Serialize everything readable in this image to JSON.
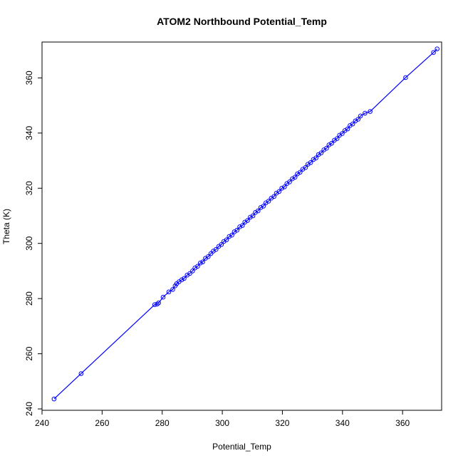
{
  "chart_data": {
    "type": "scatter",
    "title": "ATOM2 Northbound Potential_Temp",
    "xlabel": "Potential_Temp",
    "ylabel": "Theta (K)",
    "xlim": [
      240,
      373
    ],
    "ylim": [
      239.5,
      373
    ],
    "x_ticks": [
      240,
      260,
      280,
      300,
      320,
      340,
      360
    ],
    "y_ticks": [
      240,
      260,
      280,
      300,
      320,
      340,
      360
    ],
    "grid": false,
    "legend": "none",
    "series_color": "#0000ff",
    "point_style": "open-circle",
    "connected_line": true,
    "series": [
      {
        "x": [
          244.0,
          253.0,
          277.5,
          278.3,
          278.8,
          280.3,
          282.2,
          283.5,
          284.3,
          284.8,
          285.6,
          286.5,
          287.3,
          288.3,
          289.2,
          290.1,
          290.9,
          291.8,
          292.7,
          293.5,
          294.4,
          295.3,
          296.2,
          297.0,
          297.9,
          298.8,
          299.7,
          300.5,
          301.4,
          302.3,
          303.2,
          304.0,
          304.9,
          305.8,
          306.7,
          307.5,
          308.4,
          309.3,
          310.2,
          311.0,
          311.9,
          312.8,
          313.7,
          314.5,
          315.4,
          316.3,
          317.2,
          318.0,
          318.9,
          319.8,
          320.7,
          321.5,
          322.4,
          323.3,
          324.2,
          325.0,
          325.9,
          326.8,
          327.7,
          328.5,
          329.4,
          330.3,
          331.2,
          332.0,
          332.9,
          333.8,
          334.7,
          335.5,
          336.4,
          337.3,
          338.2,
          339.0,
          339.9,
          340.8,
          341.7,
          342.5,
          343.4,
          344.3,
          345.2,
          346.0,
          347.5,
          349.2,
          361.0,
          370.3,
          371.5
        ],
        "y": [
          243.6,
          252.8,
          277.8,
          278.0,
          278.4,
          280.5,
          282.4,
          283.3,
          284.6,
          285.4,
          286.1,
          286.8,
          287.3,
          288.5,
          289.1,
          290.0,
          291.1,
          291.7,
          292.9,
          293.3,
          294.6,
          295.2,
          296.3,
          297.2,
          297.8,
          298.9,
          299.6,
          300.7,
          301.3,
          302.5,
          303.0,
          304.2,
          304.8,
          306.0,
          306.5,
          307.7,
          308.3,
          309.5,
          310.0,
          311.2,
          311.8,
          313.0,
          313.5,
          314.7,
          315.3,
          316.4,
          317.0,
          318.2,
          318.8,
          320.0,
          320.5,
          321.7,
          322.3,
          323.4,
          324.0,
          325.2,
          325.8,
          326.9,
          327.5,
          328.7,
          329.3,
          330.4,
          331.0,
          332.2,
          332.8,
          333.9,
          334.5,
          335.7,
          336.3,
          337.4,
          338.0,
          339.2,
          339.8,
          340.9,
          341.5,
          342.7,
          343.3,
          344.4,
          345.0,
          346.2,
          347.2,
          347.8,
          360.1,
          369.2,
          370.5
        ]
      }
    ]
  }
}
